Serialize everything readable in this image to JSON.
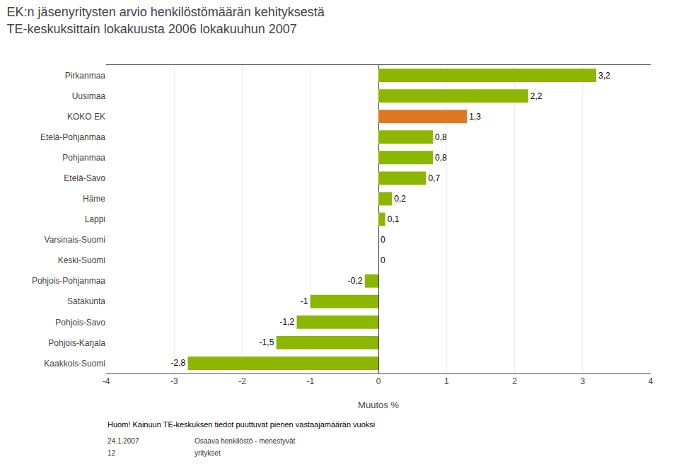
{
  "chart_data": {
    "type": "bar",
    "orientation": "horizontal",
    "title": "EK:n jäsenyritysten arvio henkilöstömäärän kehityksestä",
    "subtitle": "TE-keskuksittain lokakuusta 2006 lokakuuhun 2007",
    "categories": [
      "Pirkanmaa",
      "Uusimaa",
      "KOKO EK",
      "Etelä-Pohjanmaa",
      "Pohjanmaa",
      "Etelä-Savo",
      "Häme",
      "Lappi",
      "Varsinais-Suomi",
      "Keski-Suomi",
      "Pohjois-Pohjanmaa",
      "Satakunta",
      "Pohjois-Savo",
      "Pohjois-Karjala",
      "Kaakkois-Suomi"
    ],
    "values": [
      3.2,
      2.2,
      1.3,
      0.8,
      0.8,
      0.7,
      0.2,
      0.1,
      0.0,
      0.0,
      -0.2,
      -1.0,
      -1.2,
      -1.5,
      -2.8
    ],
    "value_labels": [
      "3,2",
      "2,2",
      "1,3",
      "0,8",
      "0,8",
      "0,7",
      "0,2",
      "0,1",
      "0",
      "0",
      "-0,2",
      "-1",
      "-1,2",
      "-1,5",
      "-2,8"
    ],
    "colors": [
      "#8db600",
      "#8db600",
      "#e07820",
      "#8db600",
      "#8db600",
      "#8db600",
      "#8db600",
      "#8db600",
      "#8db600",
      "#8db600",
      "#8db600",
      "#8db600",
      "#8db600",
      "#8db600",
      "#8db600"
    ],
    "xlabel": "Muutos %",
    "xlim": [
      -4,
      4
    ],
    "xticks": [
      -4,
      -3,
      -2,
      -1,
      0,
      1,
      2,
      3,
      4
    ],
    "grid": true,
    "data_labels": true,
    "annotations": [
      "Huom! Kainuun TE-keskuksen tiedot puuttuvat pienen vastaajamäärän vuoksi",
      "24.1.2007",
      "12",
      "Osaava henkilöstö - menestyvät",
      "yritykset"
    ]
  }
}
